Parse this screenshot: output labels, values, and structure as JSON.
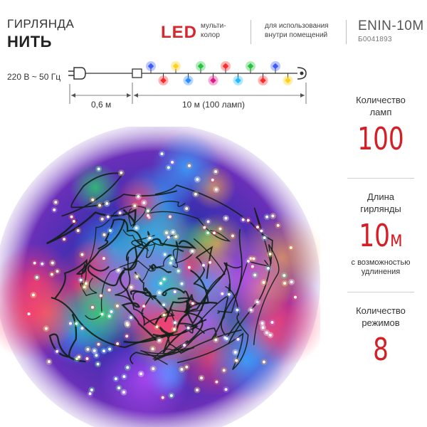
{
  "product": {
    "category": "ГИРЛЯНДА",
    "type": "НИТЬ",
    "led_label": "LED",
    "led_color": "мульти-\nколор",
    "usage": "для использования\nвнутри помещений",
    "model": "ENIN-10M",
    "article": "Б0041893"
  },
  "diagram": {
    "voltage": "220 В ~ 50 Гц",
    "lead_length": "0,6 м",
    "string_length": "10 м (100 ламп)",
    "bulb_colors": [
      "#3b5bff",
      "#ff2a2a",
      "#ffd21a",
      "#2a8cff",
      "#21c43a",
      "#e01a8c",
      "#ff2a2a",
      "#24b8ff",
      "#21c43a",
      "#ff2a2a",
      "#3b5bff",
      "#ffd21a"
    ]
  },
  "specs": [
    {
      "label": "Количество\nламп",
      "value": "100",
      "unit": "",
      "note": ""
    },
    {
      "label": "Длина\nгирлянды",
      "value": "10",
      "unit": "м",
      "note": "с возможностью\nудлинения"
    },
    {
      "label": "Количество\nрежимов",
      "value": "8",
      "unit": "",
      "note": ""
    }
  ],
  "colors": {
    "accent": "#d32027",
    "led_red": "#d9262c"
  }
}
